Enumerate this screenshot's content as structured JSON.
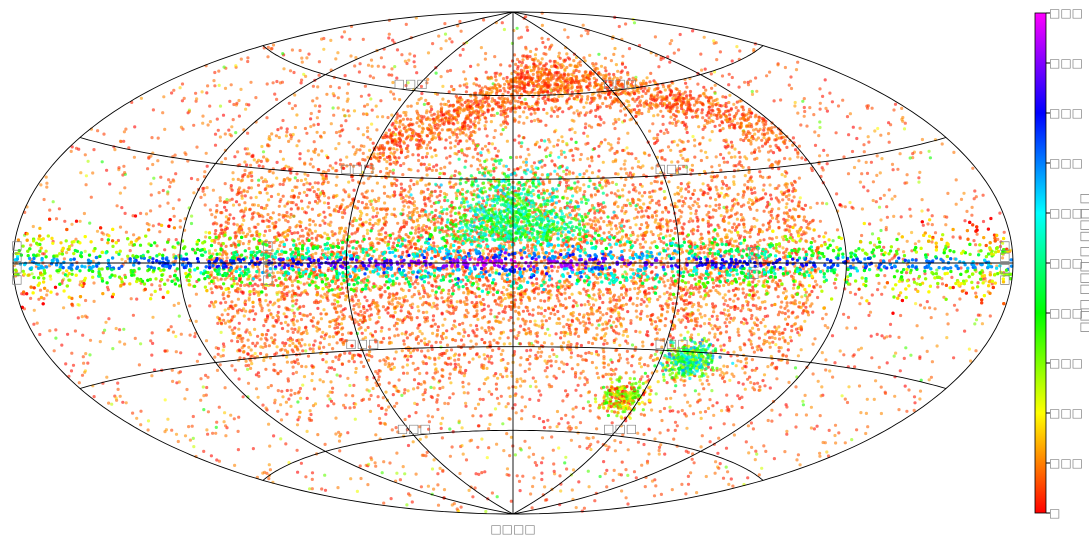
{
  "chart_data": {
    "type": "scatter",
    "projection": "aitoff",
    "title": "",
    "xlabel": "□□□□",
    "grid": true,
    "lon_lines": [
      -120,
      -60,
      0,
      60,
      120
    ],
    "lat_lines": [
      -60,
      -30,
      0,
      30,
      60
    ],
    "grid_labels": {
      "lat": [
        {
          "value": 60,
          "text": "□□□"
        },
        {
          "value": 30,
          "text": "□□□"
        },
        {
          "value": -30,
          "text": "□□□"
        },
        {
          "value": -60,
          "text": "□□□"
        }
      ],
      "lon_on_equator": [
        {
          "value": -180,
          "text": "□□□□"
        },
        {
          "value": -90,
          "text": "□□□□"
        },
        {
          "value": 90,
          "text": "□□□"
        },
        {
          "value": 180,
          "text": "□□□□"
        }
      ],
      "lat_left": [
        {
          "value": -60,
          "text": "□□□"
        },
        {
          "value": 60,
          "text": "□□□"
        }
      ]
    },
    "colorbar": {
      "label": "□ □□□ □ □□□ □□□",
      "cmap": "gist_rainbow (reversed)",
      "range": [
        0,
        10
      ],
      "ticks": [
        "□",
        "□□□",
        "□□□",
        "□□□",
        "□□□",
        "□□□",
        "□□□",
        "□□□",
        "□□□",
        "□□□",
        "□□□"
      ]
    },
    "description_of_density": {
      "galactic_plane": "dense band along latitude 0, high values (green-blue-violet) near center longitudes",
      "upper_arc": "arc structure above plane from lon -60 to +120",
      "lower_clumps": "two clumps near lon 60..80, lat -30..-50 with mid values"
    }
  },
  "colors": {
    "axis": "#000000",
    "label": "#808080"
  }
}
